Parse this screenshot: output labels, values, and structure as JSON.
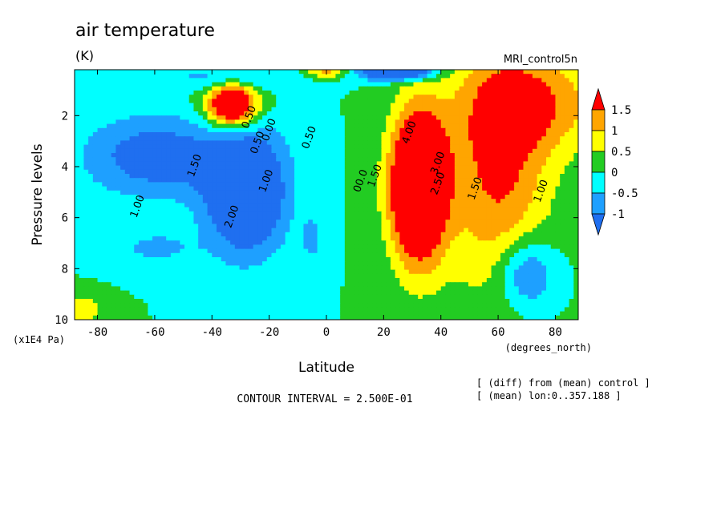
{
  "title": "air temperature",
  "units": "(K)",
  "model_label": "MRI_control5n",
  "ylabel": "Pressure levels",
  "y_unit": "(x1E4 Pa)",
  "xlabel": "Latitude",
  "x_unit": "(degrees_north)",
  "contour_interval_text": "CONTOUR INTERVAL = 2.500E-01",
  "notes": [
    "[ (diff) from (mean) control ]",
    "[ (mean) lon:0..357.188 ]"
  ],
  "colors": {
    "lt_m1": "#1f6ff0",
    "m1_m05": "#1ea0ff",
    "m05_0": "#00ffff",
    "0_05": "#22cc22",
    "05_1": "#ffff00",
    "1_15": "#ffa500",
    "gt_15": "#ff0000"
  },
  "chart_data": {
    "type": "heatmap",
    "title": "air temperature",
    "subtitle": "(K)",
    "xlabel": "Latitude",
    "ylabel": "Pressure levels",
    "xlim": [
      -88,
      88
    ],
    "ylim": [
      10,
      0.2
    ],
    "x_ticks": [
      -80,
      -60,
      -40,
      -20,
      0,
      20,
      40,
      60,
      80
    ],
    "y_ticks": [
      2,
      4,
      6,
      8,
      10
    ],
    "colorbar": {
      "levels": [
        -1,
        -0.5,
        0,
        0.5,
        1,
        1.5
      ],
      "labels": [
        "1.5",
        "1",
        "0.5",
        "0",
        "-0.5",
        "-1"
      ],
      "colors": [
        "#1f6ff0",
        "#1ea0ff",
        "#00ffff",
        "#22cc22",
        "#ffff00",
        "#ffa500",
        "#ff0000"
      ]
    },
    "contour_labels": [
      {
        "text": "0.50",
        "x": -26,
        "y": 2.1
      },
      {
        "text": "0.00",
        "x": -19,
        "y": 2.6
      },
      {
        "text": "0.50",
        "x": -23,
        "y": 3.1
      },
      {
        "text": "0.50",
        "x": -5,
        "y": 2.9
      },
      {
        "text": "1.50",
        "x": -45,
        "y": 4.0
      },
      {
        "text": "1.00",
        "x": -20,
        "y": 4.6
      },
      {
        "text": "1.00",
        "x": -65,
        "y": 5.6
      },
      {
        "text": "2.00",
        "x": -32,
        "y": 6.0
      },
      {
        "text": "4.00",
        "x": 30,
        "y": 2.7
      },
      {
        "text": "3.00",
        "x": 40,
        "y": 3.9
      },
      {
        "text": "2.50",
        "x": 40,
        "y": 4.7
      },
      {
        "text": "1.50",
        "x": 53,
        "y": 4.9
      },
      {
        "text": "1.00",
        "x": 76,
        "y": 5.0
      },
      {
        "text": "00.0",
        "x": 13,
        "y": 4.6
      },
      {
        "text": "1.50",
        "x": 18,
        "y": 4.4
      }
    ],
    "fields": {
      "background": 0,
      "blobs": [
        {
          "x": -33,
          "y": 1.6,
          "sx": 9,
          "sy": 0.9,
          "a": 3.0
        },
        {
          "x": -28,
          "y": 5.0,
          "sx": 14,
          "sy": 2.4,
          "a": -2.3
        },
        {
          "x": -60,
          "y": 3.6,
          "sx": 25,
          "sy": 1.6,
          "a": -1.4
        },
        {
          "x": -35,
          "y": 0.5,
          "sx": 20,
          "sy": 0.5,
          "a": -0.8
        },
        {
          "x": -85,
          "y": 9.6,
          "sx": 8,
          "sy": 0.6,
          "a": 0.8
        },
        {
          "x": -60,
          "y": 7.2,
          "sx": 16,
          "sy": 0.8,
          "a": -0.6
        },
        {
          "x": -5,
          "y": 6.8,
          "sx": 3,
          "sy": 0.8,
          "a": -0.8
        },
        {
          "x": 25,
          "y": 0.3,
          "sx": 12,
          "sy": 0.3,
          "a": -3.0
        },
        {
          "x": 0,
          "y": 0.3,
          "sx": 7,
          "sy": 0.2,
          "a": 1.2
        },
        {
          "x": 32,
          "y": 4.8,
          "sx": 10,
          "sy": 3.0,
          "a": 3.5
        },
        {
          "x": 60,
          "y": 4.0,
          "sx": 18,
          "sy": 5.0,
          "a": 1.6
        },
        {
          "x": 75,
          "y": 1.5,
          "sx": 25,
          "sy": 2.0,
          "a": 1.2
        },
        {
          "x": 70,
          "y": 8.2,
          "sx": 10,
          "sy": 1.4,
          "a": -1.4
        }
      ]
    }
  }
}
